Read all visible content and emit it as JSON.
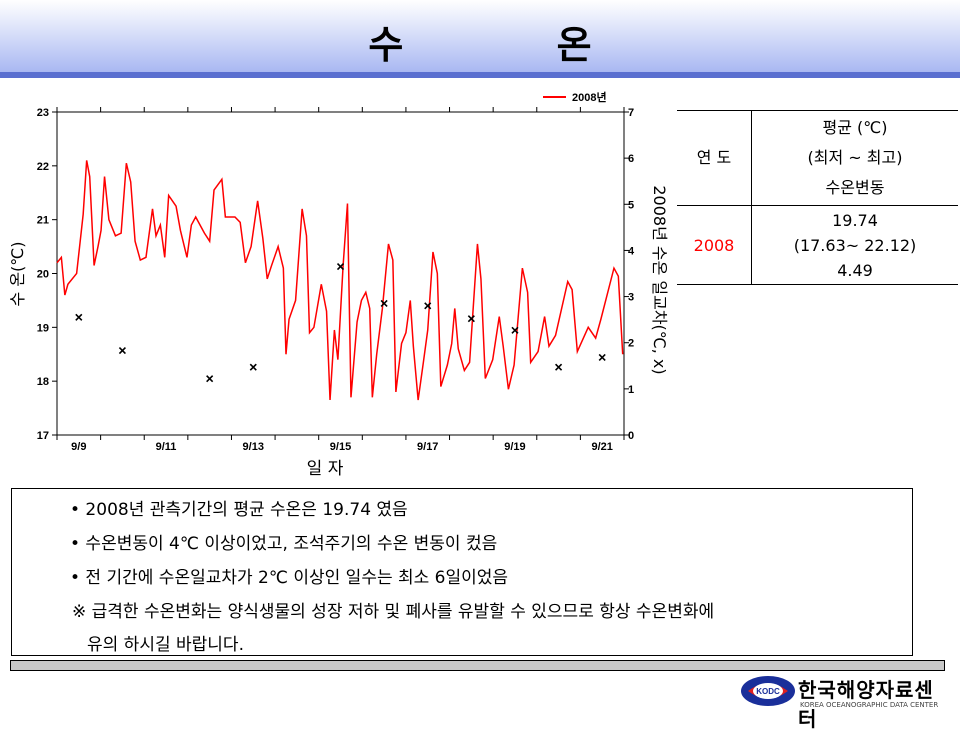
{
  "title": "수 온",
  "chart_data": {
    "type": "line",
    "title": "",
    "xlabel": "일 자",
    "ylabel": "수 온(℃)",
    "y2label": "2008년 수온 일교차(℃, x)",
    "ylim": [
      17,
      23
    ],
    "y2lim": [
      0,
      7
    ],
    "yticks": [
      "17",
      "18",
      "19",
      "20",
      "21",
      "22",
      "23"
    ],
    "y2ticks": [
      "0",
      "1",
      "2",
      "3",
      "4",
      "5",
      "6",
      "7"
    ],
    "xlim_days": [
      0,
      13
    ],
    "xticklabels": [
      {
        "day": 0.5,
        "label": "9/9"
      },
      {
        "day": 2.5,
        "label": "9/11"
      },
      {
        "day": 4.5,
        "label": "9/13"
      },
      {
        "day": 6.5,
        "label": "9/15"
      },
      {
        "day": 8.5,
        "label": "9/17"
      },
      {
        "day": 10.5,
        "label": "9/19"
      },
      {
        "day": 12.5,
        "label": "9/21"
      }
    ],
    "legend": {
      "label": "2008년",
      "position": "top-right"
    },
    "series": [
      {
        "name": "2008년",
        "color": "#ff0000",
        "x_days": [
          0,
          0.1,
          0.18,
          0.25,
          0.45,
          0.6,
          0.68,
          0.75,
          0.85,
          0.94,
          1.01,
          1.09,
          1.19,
          1.34,
          1.47,
          1.59,
          1.69,
          1.79,
          1.91,
          2.04,
          2.19,
          2.27,
          2.37,
          2.47,
          2.56,
          2.73,
          2.83,
          2.98,
          3.08,
          3.18,
          3.38,
          3.5,
          3.6,
          3.78,
          3.86,
          4.08,
          4.2,
          4.32,
          4.45,
          4.6,
          4.72,
          4.82,
          4.92,
          5.07,
          5.19,
          5.25,
          5.32,
          5.47,
          5.62,
          5.72,
          5.79,
          5.89,
          6.06,
          6.18,
          6.26,
          6.36,
          6.44,
          6.56,
          6.66,
          6.74,
          6.88,
          6.98,
          7.08,
          7.17,
          7.23,
          7.33,
          7.46,
          7.6,
          7.7,
          7.77,
          7.9,
          8.0,
          8.1,
          8.17,
          8.28,
          8.4,
          8.5,
          8.62,
          8.72,
          8.8,
          8.95,
          9.05,
          9.12,
          9.2,
          9.34,
          9.46,
          9.64,
          9.72,
          9.82,
          9.99,
          10.14,
          10.23,
          10.35,
          10.48,
          10.67,
          10.79,
          10.86,
          11.03,
          11.18,
          11.28,
          11.43,
          11.71,
          11.81,
          11.93,
          12.18,
          12.35,
          12.47,
          12.77,
          12.87,
          12.97
        ],
        "values": [
          20.2,
          20.3,
          19.6,
          19.8,
          20.0,
          21.1,
          22.1,
          21.8,
          20.15,
          20.5,
          20.8,
          21.8,
          21.0,
          20.7,
          20.75,
          22.05,
          21.7,
          20.6,
          20.25,
          20.3,
          21.2,
          20.7,
          20.9,
          20.3,
          21.45,
          21.25,
          20.8,
          20.3,
          20.9,
          21.05,
          20.75,
          20.6,
          21.55,
          21.75,
          21.05,
          21.05,
          20.95,
          20.2,
          20.5,
          21.35,
          20.65,
          19.9,
          20.15,
          20.5,
          20.1,
          18.5,
          19.15,
          19.5,
          21.2,
          20.7,
          18.9,
          19.0,
          19.8,
          19.3,
          17.65,
          18.95,
          18.4,
          20.15,
          21.3,
          17.7,
          19.1,
          19.5,
          19.65,
          19.35,
          17.7,
          18.5,
          19.35,
          20.55,
          20.25,
          17.8,
          18.7,
          18.9,
          19.5,
          18.65,
          17.65,
          18.35,
          18.95,
          20.4,
          20.0,
          17.9,
          18.3,
          18.7,
          19.35,
          18.6,
          18.2,
          18.35,
          20.55,
          19.9,
          18.05,
          18.4,
          19.2,
          18.65,
          17.85,
          18.3,
          20.1,
          19.65,
          18.35,
          18.55,
          19.2,
          18.65,
          18.85,
          19.85,
          19.7,
          18.55,
          19.0,
          18.8,
          19.15,
          20.1,
          19.95,
          18.5
        ]
      },
      {
        "name": "일교차",
        "marker": "x",
        "axis": "y2",
        "x_days": [
          0.5,
          1.5,
          3.5,
          4.5,
          6.5,
          7.5,
          8.5,
          9.5,
          10.5,
          11.5,
          12.5
        ],
        "values": [
          2.55,
          1.83,
          1.22,
          1.47,
          3.65,
          2.85,
          2.8,
          2.52,
          2.27,
          1.47,
          1.68
        ]
      }
    ]
  },
  "table": {
    "header_year": "연 도",
    "header_stats": [
      "평균 (℃)",
      "(최저 ~ 최고)",
      "수온변동"
    ],
    "year": "2008",
    "stats": [
      "19.74",
      "(17.63~ 22.12)",
      "4.49"
    ],
    "year_color": "#ff0000"
  },
  "notes": [
    "• 2008년 관측기간의 평균 수온은 19.74 였음",
    "• 수온변동이 4℃ 이상이었고, 조석주기의 수온 변동이 컸음",
    "• 전 기간에 수온일교차가 2℃ 이상인 일수는 최소 6일이었음",
    "※  급격한 수온변화는 양식생물의 성장 저하 및 폐사를 유발할 수 있으므로 항상 수온변화에",
    "유의 하시길 바랍니다."
  ],
  "logo": {
    "name_ko": "한국해양자료센터",
    "name_en": "KOREA OCEANOGRAPHIC DATA CENTER",
    "badge": "KODC"
  }
}
